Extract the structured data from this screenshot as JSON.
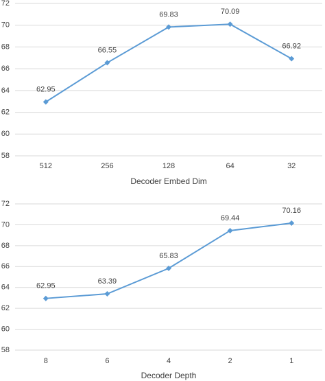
{
  "chart_data": [
    {
      "type": "line",
      "x_label": "Decoder Embed Dim",
      "categories": [
        "512",
        "256",
        "128",
        "64",
        "32"
      ],
      "values": [
        62.95,
        66.55,
        69.83,
        70.09,
        66.92
      ],
      "color": "#5b9bd5",
      "ylim": [
        58,
        72
      ],
      "yticks": [
        58,
        60,
        62,
        64,
        66,
        68,
        70,
        72
      ],
      "grid": true
    },
    {
      "type": "line",
      "x_label": "Decoder Depth",
      "categories": [
        "8",
        "6",
        "4",
        "2",
        "1"
      ],
      "values": [
        62.95,
        63.39,
        65.83,
        69.44,
        70.16
      ],
      "color": "#5b9bd5",
      "ylim": [
        58,
        72
      ],
      "yticks": [
        58,
        60,
        62,
        64,
        66,
        68,
        70,
        72
      ],
      "grid": true
    }
  ]
}
